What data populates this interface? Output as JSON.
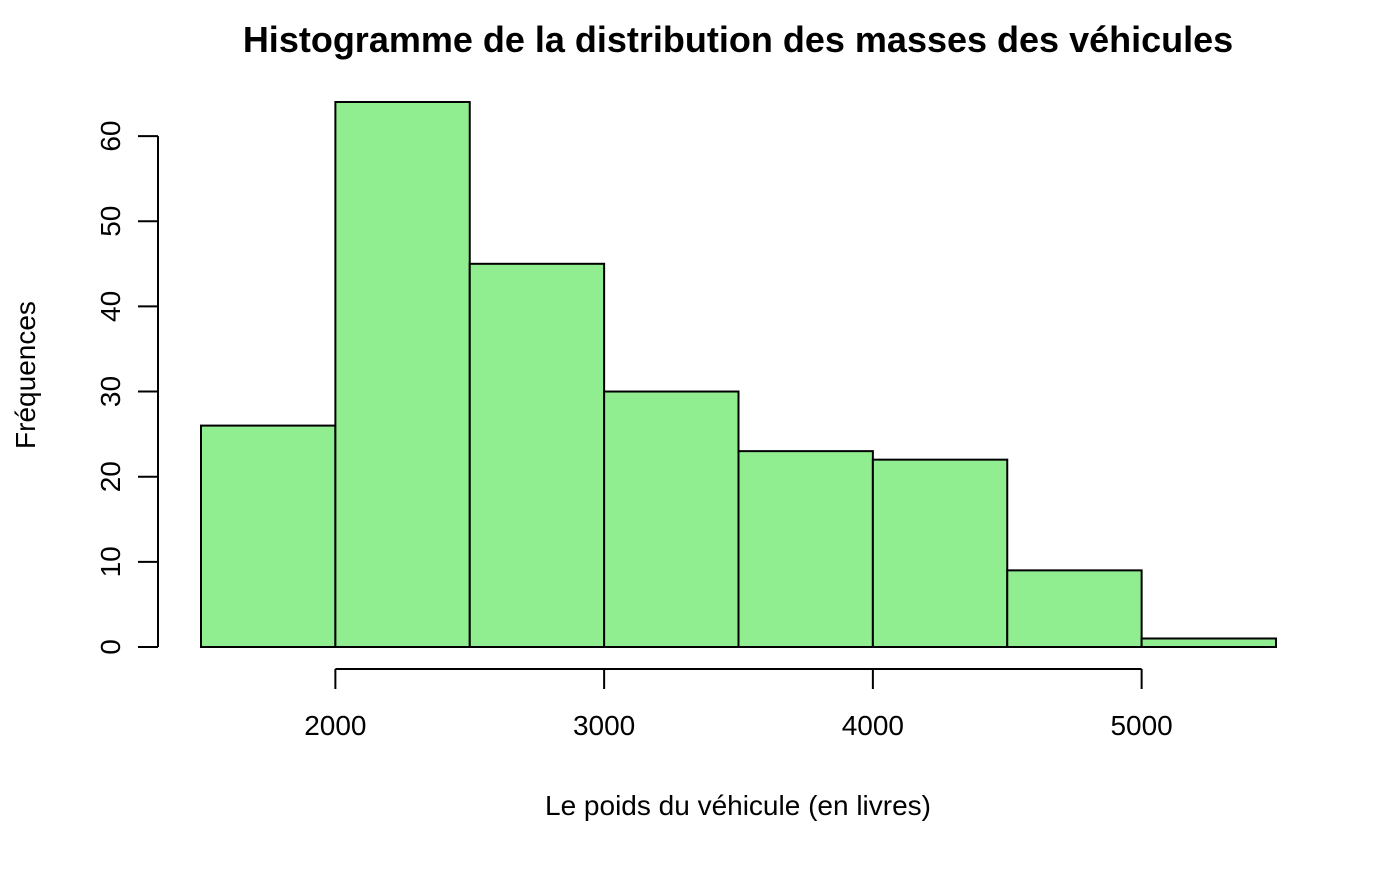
{
  "chart_data": {
    "type": "bar",
    "subtype": "histogram",
    "title": "Histogramme de la distribution des masses des véhicules",
    "xlabel": "Le poids du véhicule (en livres)",
    "ylabel": "Fréquences",
    "bins": [
      {
        "start": 1500,
        "end": 2000,
        "count": 26
      },
      {
        "start": 2000,
        "end": 2500,
        "count": 64
      },
      {
        "start": 2500,
        "end": 3000,
        "count": 45
      },
      {
        "start": 3000,
        "end": 3500,
        "count": 30
      },
      {
        "start": 3500,
        "end": 4000,
        "count": 23
      },
      {
        "start": 4000,
        "end": 4500,
        "count": 22
      },
      {
        "start": 4500,
        "end": 5000,
        "count": 9
      },
      {
        "start": 5000,
        "end": 5500,
        "count": 1
      }
    ],
    "xticks": [
      2000,
      3000,
      4000,
      5000
    ],
    "xtick_labels": [
      "2000",
      "3000",
      "4000",
      "5000"
    ],
    "xlim": [
      1500,
      5500
    ],
    "yticks": [
      0,
      10,
      20,
      30,
      40,
      50,
      60
    ],
    "ytick_labels": [
      "0",
      "10",
      "20",
      "30",
      "40",
      "50",
      "60"
    ],
    "ylim": [
      0,
      64
    ],
    "bar_fill_color": "#90EE90",
    "bar_edge_color": "#000000",
    "grid": false,
    "legend": "none"
  }
}
